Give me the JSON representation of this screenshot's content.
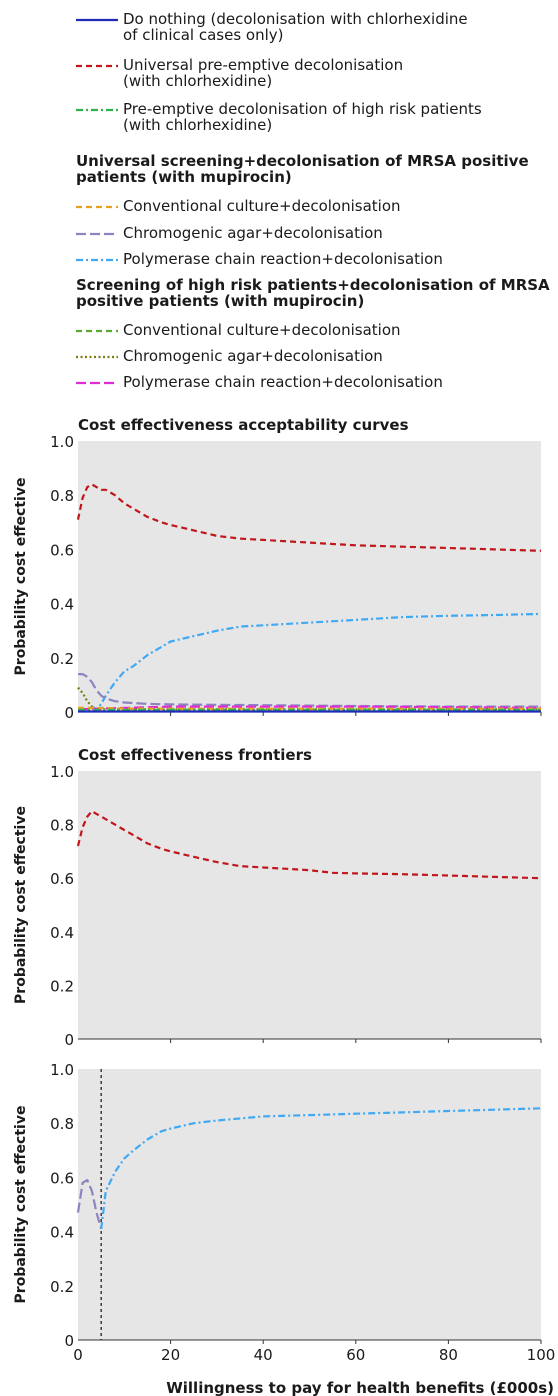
{
  "legend": {
    "items": [
      {
        "text": [
          "Do nothing (decolonisation with chlorhexidine",
          "of clinical cases only)"
        ],
        "color": "#1f2ab8",
        "dash": "solid"
      },
      {
        "text": [
          "Universal pre-emptive decolonisation",
          "(with chlorhexidine)"
        ],
        "color": "#c0171c",
        "dash": "dashed"
      },
      {
        "text": [
          "Pre-emptive decolonisation of high risk patients",
          "(with chlorhexidine)"
        ],
        "color": "#2db34a",
        "dash": "dashdot"
      }
    ],
    "groups": [
      {
        "heading": [
          "Universal screening+decolonisation of MRSA positive",
          "patients (with mupirocin)"
        ],
        "items": [
          {
            "text": [
              "Conventional culture+decolonisation"
            ],
            "color": "#e8a020",
            "dash": "dashed"
          },
          {
            "text": [
              "Chromogenic agar+decolonisation"
            ],
            "color": "#8a84c0",
            "dash": "longdash"
          },
          {
            "text": [
              "Polymerase chain reaction+decolonisation"
            ],
            "color": "#3fa9f5",
            "dash": "dashdot"
          }
        ]
      },
      {
        "heading": [
          "Screening of high risk patients+decolonisation of MRSA",
          "positive patients (with mupirocin)"
        ],
        "items": [
          {
            "text": [
              "Conventional culture+decolonisation"
            ],
            "color": "#5aa832",
            "dash": "dashed"
          },
          {
            "text": [
              "Chromogenic agar+decolonisation"
            ],
            "color": "#7a7a10",
            "dash": "dotted"
          },
          {
            "text": [
              "Polymerase chain reaction+decolonisation"
            ],
            "color": "#e02bd6",
            "dash": "longdash"
          }
        ]
      }
    ]
  },
  "chart_data": [
    {
      "type": "line",
      "title": "Cost effectiveness acceptability curves",
      "ylabel": "Probability cost effective",
      "xlabel": "",
      "xlim": [
        0,
        100
      ],
      "ylim": [
        0,
        1
      ],
      "yticks": [
        "0",
        "0.2",
        "0.4",
        "0.6",
        "0.8",
        "1.0"
      ],
      "xticks": [],
      "grid": false,
      "series": [
        {
          "color": "#c0171c",
          "dash": "dashed",
          "x": [
            0,
            1,
            2,
            3,
            4,
            5,
            6,
            8,
            10,
            12,
            15,
            18,
            20,
            25,
            30,
            35,
            40,
            45,
            50,
            55,
            60,
            70,
            80,
            90,
            100
          ],
          "y": [
            0.71,
            0.79,
            0.83,
            0.84,
            0.83,
            0.82,
            0.82,
            0.8,
            0.77,
            0.75,
            0.72,
            0.7,
            0.69,
            0.67,
            0.65,
            0.64,
            0.635,
            0.63,
            0.625,
            0.62,
            0.615,
            0.61,
            0.605,
            0.6,
            0.595
          ]
        },
        {
          "color": "#3fa9f5",
          "dash": "dashdot",
          "x": [
            3,
            4,
            5,
            6,
            8,
            10,
            12,
            15,
            18,
            20,
            25,
            30,
            35,
            40,
            50,
            60,
            70,
            80,
            90,
            100
          ],
          "y": [
            0.02,
            0.01,
            0.03,
            0.06,
            0.11,
            0.15,
            0.17,
            0.21,
            0.24,
            0.26,
            0.28,
            0.3,
            0.315,
            0.32,
            0.33,
            0.34,
            0.35,
            0.355,
            0.358,
            0.362
          ]
        },
        {
          "color": "#8a84c0",
          "dash": "longdash",
          "x": [
            0,
            1,
            2,
            3,
            4,
            5,
            6,
            8,
            10,
            15,
            20,
            40,
            60,
            80,
            100
          ],
          "y": [
            0.14,
            0.14,
            0.13,
            0.11,
            0.08,
            0.06,
            0.05,
            0.04,
            0.035,
            0.03,
            0.028,
            0.025,
            0.022,
            0.02,
            0.02
          ]
        },
        {
          "color": "#7a7a10",
          "dash": "dotted",
          "x": [
            0,
            1,
            2,
            3,
            4,
            6,
            10,
            20,
            50,
            100
          ],
          "y": [
            0.09,
            0.07,
            0.04,
            0.02,
            0.01,
            0.01,
            0.01,
            0.01,
            0.01,
            0.01
          ]
        },
        {
          "color": "#e02bd6",
          "dash": "longdash",
          "x": [
            0,
            10,
            20,
            40,
            60,
            80,
            100
          ],
          "y": [
            0.01,
            0.015,
            0.02,
            0.02,
            0.02,
            0.018,
            0.015
          ]
        },
        {
          "color": "#e8a020",
          "dash": "dashed",
          "x": [
            0,
            5,
            10,
            20,
            40,
            60,
            80,
            100
          ],
          "y": [
            0.015,
            0.015,
            0.013,
            0.012,
            0.012,
            0.012,
            0.012,
            0.012
          ]
        },
        {
          "color": "#2db34a",
          "dash": "dashdot",
          "x": [
            0,
            20,
            50,
            100
          ],
          "y": [
            0.008,
            0.008,
            0.008,
            0.008
          ]
        },
        {
          "color": "#1f2ab8",
          "dash": "solid",
          "x": [
            0,
            100
          ],
          "y": [
            0.002,
            0.002
          ]
        }
      ]
    },
    {
      "type": "line",
      "title": "Cost effectiveness frontiers",
      "ylabel": "Probability cost effective",
      "xlabel": "",
      "xlim": [
        0,
        100
      ],
      "ylim": [
        0,
        1
      ],
      "yticks": [
        "0",
        "0.2",
        "0.4",
        "0.6",
        "0.8",
        "1.0"
      ],
      "xticks": [],
      "grid": false,
      "series": [
        {
          "color": "#c0171c",
          "dash": "dashed",
          "x": [
            0,
            1,
            2,
            3,
            4,
            5,
            6,
            8,
            10,
            12,
            15,
            18,
            20,
            25,
            30,
            35,
            40,
            45,
            50,
            55,
            60,
            70,
            80,
            90,
            100
          ],
          "y": [
            0.72,
            0.79,
            0.83,
            0.85,
            0.84,
            0.83,
            0.82,
            0.8,
            0.78,
            0.76,
            0.73,
            0.71,
            0.7,
            0.68,
            0.66,
            0.645,
            0.64,
            0.635,
            0.63,
            0.62,
            0.618,
            0.615,
            0.61,
            0.605,
            0.6
          ]
        }
      ]
    },
    {
      "type": "line",
      "title": "",
      "ylabel": "Probability cost effective",
      "xlabel": "Willingness to pay for health benefits (£000s)",
      "xlim": [
        0,
        100
      ],
      "ylim": [
        0,
        1
      ],
      "yticks": [
        "0",
        "0.2",
        "0.4",
        "0.6",
        "0.8",
        "1.0"
      ],
      "xticks": [
        "0",
        "20",
        "40",
        "60",
        "80",
        "100"
      ],
      "grid": false,
      "vline_x": 5,
      "series": [
        {
          "color": "#8a84c0",
          "dash": "longdash",
          "x": [
            0,
            1,
            2,
            3,
            4,
            5
          ],
          "y": [
            0.47,
            0.58,
            0.59,
            0.55,
            0.47,
            0.41
          ]
        },
        {
          "color": "#3fa9f5",
          "dash": "dashdot",
          "x": [
            5,
            6,
            8,
            10,
            12,
            15,
            18,
            20,
            25,
            30,
            40,
            50,
            60,
            70,
            80,
            90,
            100
          ],
          "y": [
            0.41,
            0.55,
            0.62,
            0.67,
            0.7,
            0.74,
            0.77,
            0.78,
            0.8,
            0.81,
            0.825,
            0.83,
            0.835,
            0.84,
            0.845,
            0.85,
            0.855
          ]
        }
      ]
    }
  ]
}
